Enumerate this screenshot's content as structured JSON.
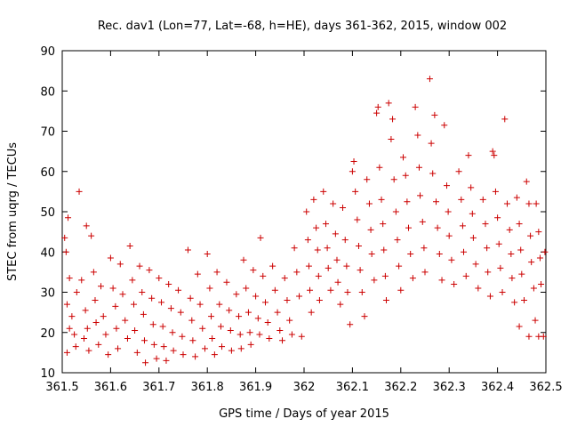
{
  "chart_data": {
    "type": "scatter",
    "title": "Rec. dav1 (Lon=77, Lat=-68, h=HE), days 361-362, 2015, window 002",
    "xlabel": "GPS time / Days of year 2015",
    "ylabel": "STEC from uqrg / TECUs",
    "xlim": [
      361.5,
      362.5
    ],
    "ylim": [
      10,
      90
    ],
    "x_ticks": [
      361.5,
      361.6,
      361.7,
      361.8,
      361.9,
      362.0,
      362.1,
      362.2,
      362.3,
      362.4,
      362.5
    ],
    "x_tick_labels": [
      "361.5",
      "361.6",
      "361.7",
      "361.8",
      "361.9",
      "362",
      "362.1",
      "362.2",
      "362.3",
      "362.4",
      "362.5"
    ],
    "y_ticks": [
      10,
      20,
      30,
      40,
      50,
      60,
      70,
      80,
      90
    ],
    "y_tick_labels": [
      "10",
      "20",
      "30",
      "40",
      "50",
      "60",
      "70",
      "80",
      "90"
    ],
    "marker": "+",
    "color": "#cc0000",
    "grid": false,
    "series": [
      {
        "points": [
          [
            361.505,
            43.5
          ],
          [
            361.508,
            40.0
          ],
          [
            361.512,
            48.5
          ],
          [
            361.515,
            33.5
          ],
          [
            361.51,
            27.0
          ],
          [
            361.515,
            21.0
          ],
          [
            361.51,
            15.0
          ],
          [
            361.52,
            24.0
          ],
          [
            361.525,
            19.5
          ],
          [
            361.528,
            16.5
          ],
          [
            361.53,
            30.0
          ],
          [
            361.535,
            55.0
          ],
          [
            361.54,
            33.0
          ],
          [
            361.545,
            18.5
          ],
          [
            361.55,
            46.5
          ],
          [
            361.548,
            25.5
          ],
          [
            361.552,
            21.0
          ],
          [
            361.555,
            15.5
          ],
          [
            361.56,
            44.0
          ],
          [
            361.565,
            35.0
          ],
          [
            361.568,
            28.0
          ],
          [
            361.57,
            22.5
          ],
          [
            361.575,
            17.0
          ],
          [
            361.58,
            31.5
          ],
          [
            361.585,
            24.0
          ],
          [
            361.59,
            19.5
          ],
          [
            361.595,
            14.5
          ],
          [
            361.6,
            38.5
          ],
          [
            361.605,
            31.0
          ],
          [
            361.61,
            26.5
          ],
          [
            361.612,
            21.0
          ],
          [
            361.615,
            16.0
          ],
          [
            361.62,
            37.0
          ],
          [
            361.625,
            29.5
          ],
          [
            361.63,
            23.0
          ],
          [
            361.635,
            18.5
          ],
          [
            361.64,
            41.5
          ],
          [
            361.645,
            33.0
          ],
          [
            361.648,
            27.0
          ],
          [
            361.65,
            20.5
          ],
          [
            361.655,
            15.0
          ],
          [
            361.66,
            36.5
          ],
          [
            361.665,
            30.0
          ],
          [
            361.668,
            24.5
          ],
          [
            361.67,
            18.0
          ],
          [
            361.672,
            12.5
          ],
          [
            361.68,
            35.5
          ],
          [
            361.685,
            28.5
          ],
          [
            361.688,
            22.0
          ],
          [
            361.69,
            17.0
          ],
          [
            361.695,
            13.5
          ],
          [
            361.7,
            33.5
          ],
          [
            361.705,
            27.5
          ],
          [
            361.708,
            21.5
          ],
          [
            361.71,
            16.5
          ],
          [
            361.715,
            13.0
          ],
          [
            361.72,
            32.0
          ],
          [
            361.725,
            26.0
          ],
          [
            361.728,
            20.0
          ],
          [
            361.73,
            15.5
          ],
          [
            361.74,
            30.5
          ],
          [
            361.745,
            25.0
          ],
          [
            361.748,
            19.0
          ],
          [
            361.75,
            14.5
          ],
          [
            361.76,
            40.5
          ],
          [
            361.765,
            28.5
          ],
          [
            361.768,
            23.0
          ],
          [
            361.77,
            18.0
          ],
          [
            361.775,
            14.0
          ],
          [
            361.78,
            34.5
          ],
          [
            361.785,
            27.0
          ],
          [
            361.79,
            21.0
          ],
          [
            361.795,
            16.0
          ],
          [
            361.8,
            39.5
          ],
          [
            361.805,
            31.0
          ],
          [
            361.808,
            24.0
          ],
          [
            361.81,
            18.5
          ],
          [
            361.815,
            14.5
          ],
          [
            361.82,
            35.0
          ],
          [
            361.825,
            27.0
          ],
          [
            361.828,
            21.5
          ],
          [
            361.83,
            16.5
          ],
          [
            361.84,
            32.5
          ],
          [
            361.845,
            25.5
          ],
          [
            361.848,
            20.5
          ],
          [
            361.85,
            15.5
          ],
          [
            361.86,
            29.5
          ],
          [
            361.865,
            24.0
          ],
          [
            361.868,
            19.5
          ],
          [
            361.87,
            16.0
          ],
          [
            361.875,
            38.0
          ],
          [
            361.88,
            31.0
          ],
          [
            361.885,
            25.0
          ],
          [
            361.888,
            20.0
          ],
          [
            361.89,
            17.0
          ],
          [
            361.895,
            35.5
          ],
          [
            361.9,
            29.0
          ],
          [
            361.905,
            23.5
          ],
          [
            361.908,
            19.5
          ],
          [
            361.91,
            43.5
          ],
          [
            361.915,
            34.0
          ],
          [
            361.92,
            27.5
          ],
          [
            361.925,
            22.5
          ],
          [
            361.928,
            18.5
          ],
          [
            361.935,
            36.5
          ],
          [
            361.94,
            30.5
          ],
          [
            361.945,
            25.0
          ],
          [
            361.95,
            20.5
          ],
          [
            361.955,
            18.0
          ],
          [
            361.96,
            33.5
          ],
          [
            361.965,
            28.0
          ],
          [
            361.97,
            23.0
          ],
          [
            361.975,
            19.5
          ],
          [
            361.98,
            41.0
          ],
          [
            361.985,
            35.0
          ],
          [
            361.99,
            29.0
          ],
          [
            361.995,
            19.0
          ],
          [
            362.005,
            50.0
          ],
          [
            362.008,
            43.0
          ],
          [
            362.01,
            36.5
          ],
          [
            362.012,
            30.5
          ],
          [
            362.015,
            25.0
          ],
          [
            362.02,
            53.0
          ],
          [
            362.025,
            46.0
          ],
          [
            362.028,
            40.5
          ],
          [
            362.03,
            34.0
          ],
          [
            362.032,
            28.0
          ],
          [
            362.04,
            55.0
          ],
          [
            362.045,
            47.0
          ],
          [
            362.048,
            41.0
          ],
          [
            362.05,
            36.0
          ],
          [
            362.055,
            30.5
          ],
          [
            362.06,
            52.0
          ],
          [
            362.065,
            44.5
          ],
          [
            362.068,
            38.0
          ],
          [
            362.07,
            32.5
          ],
          [
            362.075,
            27.0
          ],
          [
            362.08,
            51.0
          ],
          [
            362.085,
            43.0
          ],
          [
            362.088,
            36.5
          ],
          [
            362.09,
            30.0
          ],
          [
            362.095,
            22.0
          ],
          [
            362.1,
            60.0
          ],
          [
            362.103,
            62.5
          ],
          [
            362.106,
            55.0
          ],
          [
            362.11,
            48.0
          ],
          [
            362.113,
            41.5
          ],
          [
            362.116,
            35.5
          ],
          [
            362.12,
            30.0
          ],
          [
            362.125,
            24.0
          ],
          [
            362.13,
            58.0
          ],
          [
            362.135,
            52.0
          ],
          [
            362.138,
            45.5
          ],
          [
            362.14,
            39.5
          ],
          [
            362.145,
            33.0
          ],
          [
            362.15,
            74.5
          ],
          [
            362.153,
            76.0
          ],
          [
            362.156,
            61.0
          ],
          [
            362.16,
            53.0
          ],
          [
            362.163,
            47.0
          ],
          [
            362.165,
            40.5
          ],
          [
            362.168,
            34.0
          ],
          [
            362.17,
            28.0
          ],
          [
            362.175,
            77.0
          ],
          [
            362.18,
            68.0
          ],
          [
            362.183,
            73.0
          ],
          [
            362.186,
            58.0
          ],
          [
            362.19,
            50.0
          ],
          [
            362.193,
            43.0
          ],
          [
            362.196,
            36.5
          ],
          [
            362.2,
            30.5
          ],
          [
            362.205,
            63.5
          ],
          [
            362.21,
            59.0
          ],
          [
            362.213,
            52.5
          ],
          [
            362.216,
            46.0
          ],
          [
            362.22,
            39.5
          ],
          [
            362.225,
            33.5
          ],
          [
            362.23,
            76.0
          ],
          [
            362.235,
            69.0
          ],
          [
            362.238,
            61.0
          ],
          [
            362.24,
            54.0
          ],
          [
            362.245,
            47.5
          ],
          [
            362.248,
            41.0
          ],
          [
            362.25,
            35.0
          ],
          [
            362.26,
            83.0
          ],
          [
            362.263,
            67.0
          ],
          [
            362.266,
            59.5
          ],
          [
            362.27,
            74.0
          ],
          [
            362.273,
            52.5
          ],
          [
            362.276,
            46.0
          ],
          [
            362.28,
            39.5
          ],
          [
            362.285,
            33.0
          ],
          [
            362.29,
            71.5
          ],
          [
            362.295,
            56.5
          ],
          [
            362.298,
            50.0
          ],
          [
            362.3,
            44.0
          ],
          [
            362.305,
            38.0
          ],
          [
            362.31,
            32.0
          ],
          [
            362.32,
            60.0
          ],
          [
            362.325,
            53.0
          ],
          [
            362.328,
            46.5
          ],
          [
            362.33,
            40.0
          ],
          [
            362.335,
            34.0
          ],
          [
            362.34,
            64.0
          ],
          [
            362.345,
            56.0
          ],
          [
            362.348,
            49.5
          ],
          [
            362.35,
            43.5
          ],
          [
            362.355,
            37.0
          ],
          [
            362.36,
            31.0
          ],
          [
            362.37,
            53.0
          ],
          [
            362.375,
            47.0
          ],
          [
            362.378,
            41.0
          ],
          [
            362.38,
            35.0
          ],
          [
            362.385,
            29.0
          ],
          [
            362.39,
            65.0
          ],
          [
            362.393,
            64.0
          ],
          [
            362.396,
            55.0
          ],
          [
            362.4,
            48.5
          ],
          [
            362.403,
            42.0
          ],
          [
            362.406,
            36.0
          ],
          [
            362.41,
            30.0
          ],
          [
            362.415,
            73.0
          ],
          [
            362.42,
            52.0
          ],
          [
            362.425,
            45.5
          ],
          [
            362.428,
            39.5
          ],
          [
            362.43,
            33.5
          ],
          [
            362.435,
            27.5
          ],
          [
            362.44,
            53.5
          ],
          [
            362.445,
            47.0
          ],
          [
            362.448,
            40.5
          ],
          [
            362.45,
            34.5
          ],
          [
            362.455,
            28.0
          ],
          [
            362.46,
            57.5
          ],
          [
            362.465,
            52.0
          ],
          [
            362.468,
            44.0
          ],
          [
            362.47,
            37.5
          ],
          [
            362.475,
            31.0
          ],
          [
            362.478,
            23.0
          ],
          [
            362.48,
            52.0
          ],
          [
            362.485,
            45.0
          ],
          [
            362.488,
            38.5
          ],
          [
            362.49,
            32.0
          ],
          [
            362.495,
            19.0
          ],
          [
            362.465,
            19.0
          ],
          [
            362.485,
            19.0
          ],
          [
            362.445,
            21.5
          ],
          [
            362.498,
            40.0
          ]
        ]
      }
    ]
  }
}
